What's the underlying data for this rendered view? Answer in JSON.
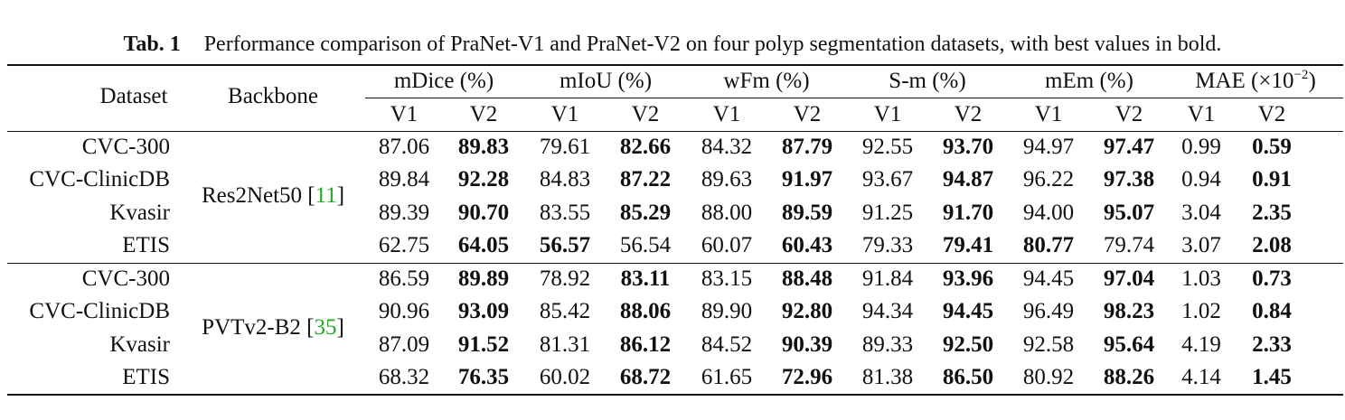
{
  "caption": {
    "label": "Tab. 1",
    "text": "Performance comparison of PraNet-V1 and PraNet-V2 on four polyp segmentation datasets, with best values in bold."
  },
  "headers": {
    "dataset": "Dataset",
    "backbone": "Backbone",
    "metrics": [
      "mDice (%)",
      "mIoU (%)",
      "wFm (%)",
      "S-m (%)",
      "mEm (%)"
    ],
    "mae_prefix": "MAE (×10",
    "mae_exp": "−2",
    "mae_suffix": ")",
    "sub": [
      "V1",
      "V2"
    ]
  },
  "groups": [
    {
      "backbone": "Res2Net50 [",
      "cite": "11",
      "close": "]",
      "rows": [
        {
          "dataset": "CVC-300",
          "values": [
            "87.06",
            "89.83",
            "79.61",
            "82.66",
            "84.32",
            "87.79",
            "92.55",
            "93.70",
            "94.97",
            "97.47",
            "0.99",
            "0.59"
          ],
          "bold": [
            false,
            true,
            false,
            true,
            false,
            true,
            false,
            true,
            false,
            true,
            false,
            true
          ]
        },
        {
          "dataset": "CVC-ClinicDB",
          "values": [
            "89.84",
            "92.28",
            "84.83",
            "87.22",
            "89.63",
            "91.97",
            "93.67",
            "94.87",
            "96.22",
            "97.38",
            "0.94",
            "0.91"
          ],
          "bold": [
            false,
            true,
            false,
            true,
            false,
            true,
            false,
            true,
            false,
            true,
            false,
            true
          ]
        },
        {
          "dataset": "Kvasir",
          "values": [
            "89.39",
            "90.70",
            "83.55",
            "85.29",
            "88.00",
            "89.59",
            "91.25",
            "91.70",
            "94.00",
            "95.07",
            "3.04",
            "2.35"
          ],
          "bold": [
            false,
            true,
            false,
            true,
            false,
            true,
            false,
            true,
            false,
            true,
            false,
            true
          ]
        },
        {
          "dataset": "ETIS",
          "values": [
            "62.75",
            "64.05",
            "56.57",
            "56.54",
            "60.07",
            "60.43",
            "79.33",
            "79.41",
            "80.77",
            "79.74",
            "3.07",
            "2.08"
          ],
          "bold": [
            false,
            true,
            true,
            false,
            false,
            true,
            false,
            true,
            true,
            false,
            false,
            true
          ]
        }
      ]
    },
    {
      "backbone": "PVTv2-B2 [",
      "cite": "35",
      "close": "]",
      "rows": [
        {
          "dataset": "CVC-300",
          "values": [
            "86.59",
            "89.89",
            "78.92",
            "83.11",
            "83.15",
            "88.48",
            "91.84",
            "93.96",
            "94.45",
            "97.04",
            "1.03",
            "0.73"
          ],
          "bold": [
            false,
            true,
            false,
            true,
            false,
            true,
            false,
            true,
            false,
            true,
            false,
            true
          ]
        },
        {
          "dataset": "CVC-ClinicDB",
          "values": [
            "90.96",
            "93.09",
            "85.42",
            "88.06",
            "89.90",
            "92.80",
            "94.34",
            "94.45",
            "96.49",
            "98.23",
            "1.02",
            "0.84"
          ],
          "bold": [
            false,
            true,
            false,
            true,
            false,
            true,
            false,
            true,
            false,
            true,
            false,
            true
          ]
        },
        {
          "dataset": "Kvasir",
          "values": [
            "87.09",
            "91.52",
            "81.31",
            "86.12",
            "84.52",
            "90.39",
            "89.33",
            "92.50",
            "92.58",
            "95.64",
            "4.19",
            "2.33"
          ],
          "bold": [
            false,
            true,
            false,
            true,
            false,
            true,
            false,
            true,
            false,
            true,
            false,
            true
          ]
        },
        {
          "dataset": "ETIS",
          "values": [
            "68.32",
            "76.35",
            "60.02",
            "68.72",
            "61.65",
            "72.96",
            "81.38",
            "86.50",
            "80.92",
            "88.26",
            "4.14",
            "1.45"
          ],
          "bold": [
            false,
            true,
            false,
            true,
            false,
            true,
            false,
            true,
            false,
            true,
            false,
            true
          ]
        }
      ]
    }
  ]
}
